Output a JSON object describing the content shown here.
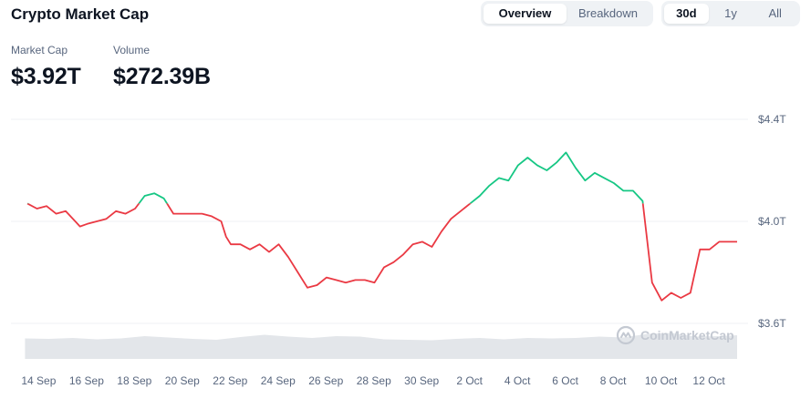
{
  "header": {
    "title": "Crypto Market Cap"
  },
  "view_tabs": [
    {
      "label": "Overview",
      "active": true
    },
    {
      "label": "Breakdown",
      "active": false
    }
  ],
  "range_tabs": [
    {
      "label": "30d",
      "active": true
    },
    {
      "label": "1y",
      "active": false
    },
    {
      "label": "All",
      "active": false
    }
  ],
  "stats": {
    "market_cap": {
      "label": "Market Cap",
      "value": "$3.92T"
    },
    "volume": {
      "label": "Volume",
      "value": "$272.39B"
    }
  },
  "watermark": {
    "text": "CoinMarketCap",
    "icon": "coinmarketcap-logo-icon"
  },
  "colors": {
    "up": "#16c784",
    "down": "#ea3943",
    "grid": "#eff2f5",
    "volume": "#e3e6ea",
    "axis_text": "#58667e"
  },
  "chart_data": {
    "type": "line",
    "title": "",
    "xlabel": "",
    "ylabel": "",
    "baseline": 4.07,
    "ylim": [
      3.52,
      4.45
    ],
    "y_ticks": [
      {
        "value": 4.4,
        "label": "$4.4T"
      },
      {
        "value": 4.0,
        "label": "$4.0T"
      },
      {
        "value": 3.6,
        "label": "$3.6T"
      }
    ],
    "x_ticks": [
      "14 Sep",
      "16 Sep",
      "18 Sep",
      "20 Sep",
      "22 Sep",
      "24 Sep",
      "26 Sep",
      "28 Sep",
      "30 Sep",
      "2 Oct",
      "4 Oct",
      "6 Oct",
      "8 Oct",
      "10 Oct",
      "12 Oct"
    ],
    "x_tick_days": [
      0,
      2,
      4,
      6,
      8,
      10,
      12,
      14,
      16,
      18,
      20,
      22,
      24,
      26,
      28
    ],
    "x_range_days": [
      0.1,
      29.75
    ],
    "grid": true,
    "series": [
      {
        "x": [
          0.1,
          0.5,
          0.9,
          1.3,
          1.7,
          2.1,
          2.3,
          2.6,
          3.0,
          3.4,
          3.8,
          4.2,
          4.6,
          5.0,
          5.4,
          5.8,
          6.2,
          6.6,
          7.0,
          7.4,
          7.8,
          8.2,
          8.4,
          8.6,
          9.0,
          9.4,
          9.8,
          10.2,
          10.6,
          11.0,
          11.4,
          11.8,
          12.2,
          12.6,
          13.0,
          13.4,
          13.8,
          14.2,
          14.6,
          15.0,
          15.4,
          15.8,
          16.2,
          16.6,
          17.0,
          17.4,
          17.8,
          18.2,
          18.6,
          19.0,
          19.4,
          19.8,
          20.2,
          20.6,
          21.0,
          21.4,
          21.8,
          22.2,
          22.6,
          23.0,
          23.4,
          23.8,
          24.2,
          24.6,
          25.0,
          25.4,
          25.8,
          26.2,
          26.6,
          27.0,
          27.4,
          27.8,
          28.2,
          28.6,
          29.0,
          29.4,
          29.75
        ],
        "y": [
          4.07,
          4.05,
          4.06,
          4.03,
          4.04,
          4.0,
          3.98,
          3.99,
          4.0,
          4.01,
          4.04,
          4.03,
          4.05,
          4.1,
          4.11,
          4.09,
          4.03,
          4.03,
          4.03,
          4.03,
          4.02,
          4.0,
          3.94,
          3.91,
          3.91,
          3.89,
          3.91,
          3.88,
          3.91,
          3.86,
          3.8,
          3.74,
          3.75,
          3.78,
          3.77,
          3.76,
          3.77,
          3.77,
          3.76,
          3.82,
          3.84,
          3.87,
          3.91,
          3.92,
          3.9,
          3.96,
          4.01,
          4.04,
          4.07,
          4.1,
          4.14,
          4.17,
          4.16,
          4.22,
          4.25,
          4.22,
          4.2,
          4.23,
          4.27,
          4.21,
          4.16,
          4.19,
          4.17,
          4.15,
          4.12,
          4.12,
          4.08,
          3.76,
          3.69,
          3.72,
          3.7,
          3.72,
          3.89,
          3.89,
          3.92,
          3.92,
          3.92
        ]
      }
    ],
    "volume": {
      "x": [
        0,
        1,
        2,
        3,
        4,
        5,
        6,
        7,
        8,
        9,
        10,
        11,
        12,
        13,
        14,
        15,
        16,
        17,
        18,
        19,
        20,
        21,
        22,
        23,
        24,
        25,
        26,
        27,
        28,
        29,
        29.75
      ],
      "values": [
        45,
        44,
        46,
        43,
        45,
        50,
        47,
        44,
        42,
        48,
        53,
        49,
        46,
        50,
        49,
        43,
        42,
        41,
        44,
        46,
        43,
        46,
        45,
        46,
        49,
        47,
        55,
        57,
        49,
        50,
        52
      ]
    }
  }
}
